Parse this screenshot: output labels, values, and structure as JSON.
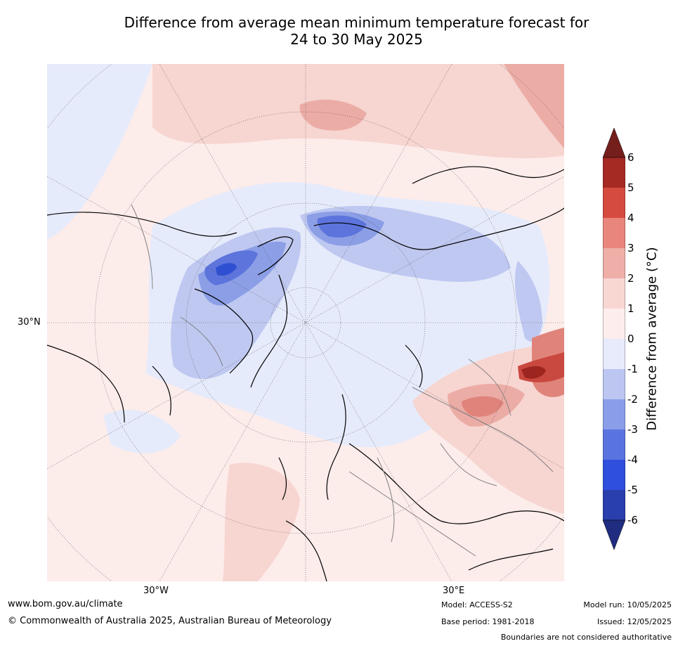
{
  "title_line1": "Difference from average mean minimum temperature forecast for",
  "title_line2": "24 to 30 May 2025",
  "map": {
    "projection": "north-polar-stereographic",
    "lat_label": "30°N",
    "lon_labels": [
      "30°W",
      "30°E"
    ],
    "colors": {
      "ocean_neutral": "#fcecea",
      "land_neutral": "#fbe9e6",
      "cool_1": "#e6ebfb",
      "cool_2": "#bfc8f1",
      "cool_3": "#8b9ee6",
      "cool_4": "#5c74dc",
      "cool_5": "#2f4fd3",
      "warm_1": "#f7d5d1",
      "warm_2": "#ecaca6",
      "warm_3": "#e0847b",
      "warm_4": "#c9483f",
      "warm_5": "#9c2520",
      "coast": "#000000",
      "border": "#808080",
      "graticule": "#555555"
    }
  },
  "colorbar": {
    "label": "Difference from average (°C)",
    "ticks": [
      "6",
      "5",
      "4",
      "3",
      "2",
      "1",
      "0",
      "-1",
      "-2",
      "-3",
      "-4",
      "-5",
      "-6"
    ],
    "colors": [
      "#a52a24",
      "#d64b3f",
      "#e8857c",
      "#efaea8",
      "#f8d6d2",
      "#fdeeed",
      "#e7ebfb",
      "#bcc6f1",
      "#8a9de9",
      "#5a74df",
      "#2f50dd",
      "#2a3fae"
    ],
    "over_color": "#751f1c",
    "under_color": "#1f2d80"
  },
  "footer": {
    "website": "www.bom.gov.au/climate",
    "copyright": "© Commonwealth of Australia 2025, Australian Bureau of Meteorology",
    "model": "Model: ACCESS-S2",
    "base_period": "Base period: 1981-2018",
    "model_run": "Model run: 10/05/2025",
    "issued": "Issued: 12/05/2025",
    "disclaimer": "Boundaries are not considered authoritative"
  }
}
